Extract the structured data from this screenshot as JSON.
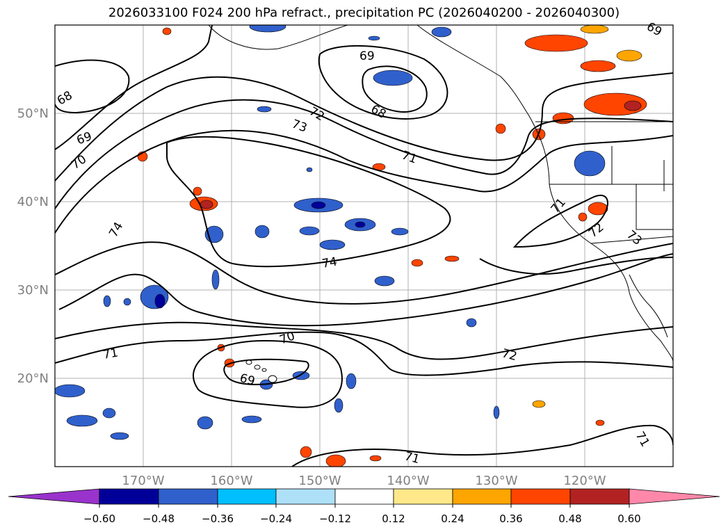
{
  "title": "2026033100 F024 200 hPa refract., precipitation PC (2026040200 - 2026040300)",
  "map": {
    "lat_labels": [
      "50°N",
      "40°N",
      "30°N",
      "20°N"
    ],
    "lon_labels": [
      "170°W",
      "160°W",
      "150°W",
      "140°W",
      "130°W",
      "120°W"
    ],
    "extent": {
      "lon_min": -180,
      "lon_max": -110,
      "lat_min": 10,
      "lat_max": 60
    },
    "gridlines": true,
    "contour_labels": [
      "68",
      "68",
      "69",
      "69",
      "69",
      "69",
      "70",
      "70",
      "71",
      "71",
      "71",
      "71",
      "71",
      "72",
      "72",
      "72",
      "73",
      "73",
      "74",
      "74"
    ]
  },
  "colorbar": {
    "ticks": [
      "−0.60",
      "−0.48",
      "−0.36",
      "−0.24",
      "−0.12",
      "0.12",
      "0.24",
      "0.36",
      "0.48",
      "0.60"
    ],
    "colors": [
      "#9933cc",
      "#000099",
      "#3060cc",
      "#00bfff",
      "#aee0f8",
      "#ffffff",
      "#ffe88a",
      "#ffa500",
      "#ff4500",
      "#b22222",
      "#ff88aa"
    ]
  }
}
